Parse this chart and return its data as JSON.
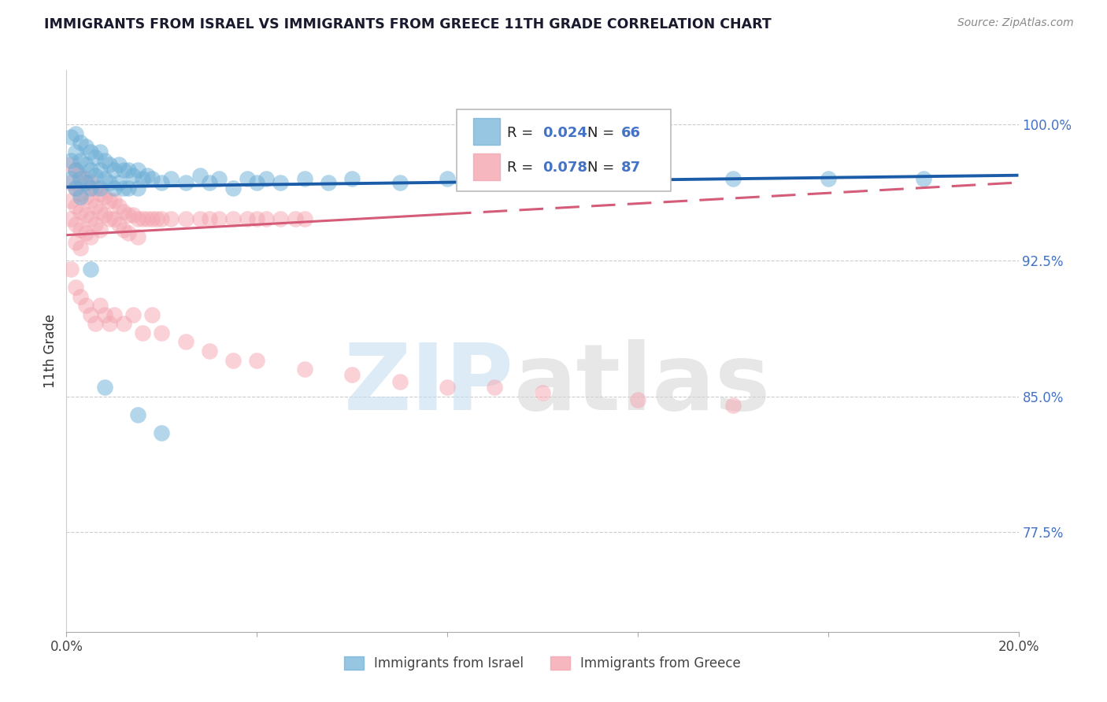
{
  "title": "IMMIGRANTS FROM ISRAEL VS IMMIGRANTS FROM GREECE 11TH GRADE CORRELATION CHART",
  "source": "Source: ZipAtlas.com",
  "ylabel": "11th Grade",
  "ylabel_right_labels": [
    "100.0%",
    "92.5%",
    "85.0%",
    "77.5%"
  ],
  "ylabel_right_values": [
    1.0,
    0.925,
    0.85,
    0.775
  ],
  "xlim": [
    0.0,
    0.2
  ],
  "ylim": [
    0.72,
    1.03
  ],
  "israel_color": "#6baed6",
  "greece_color": "#f4a5b0",
  "israel_R": 0.024,
  "israel_N": 66,
  "greece_R": 0.078,
  "greece_N": 87,
  "legend_label_israel": "Immigrants from Israel",
  "legend_label_greece": "Immigrants from Greece",
  "israel_trend": [
    0.9655,
    0.972
  ],
  "greece_trend": [
    0.939,
    0.968
  ],
  "israel_x": [
    0.001,
    0.001,
    0.001,
    0.002,
    0.002,
    0.002,
    0.002,
    0.003,
    0.003,
    0.003,
    0.003,
    0.004,
    0.004,
    0.004,
    0.005,
    0.005,
    0.005,
    0.006,
    0.006,
    0.007,
    0.007,
    0.007,
    0.008,
    0.008,
    0.009,
    0.009,
    0.01,
    0.01,
    0.011,
    0.011,
    0.012,
    0.012,
    0.013,
    0.013,
    0.014,
    0.015,
    0.015,
    0.016,
    0.017,
    0.018,
    0.02,
    0.022,
    0.025,
    0.028,
    0.03,
    0.032,
    0.035,
    0.038,
    0.04,
    0.042,
    0.045,
    0.05,
    0.055,
    0.06,
    0.07,
    0.08,
    0.09,
    0.1,
    0.12,
    0.14,
    0.16,
    0.18,
    0.005,
    0.008,
    0.015,
    0.02
  ],
  "israel_y": [
    0.993,
    0.98,
    0.97,
    0.995,
    0.985,
    0.975,
    0.965,
    0.99,
    0.98,
    0.97,
    0.96,
    0.988,
    0.978,
    0.968,
    0.985,
    0.975,
    0.965,
    0.982,
    0.972,
    0.985,
    0.975,
    0.965,
    0.98,
    0.97,
    0.978,
    0.968,
    0.975,
    0.965,
    0.978,
    0.968,
    0.975,
    0.965,
    0.975,
    0.965,
    0.972,
    0.975,
    0.965,
    0.97,
    0.972,
    0.97,
    0.968,
    0.97,
    0.968,
    0.972,
    0.968,
    0.97,
    0.965,
    0.97,
    0.968,
    0.97,
    0.968,
    0.97,
    0.968,
    0.97,
    0.968,
    0.97,
    0.968,
    0.97,
    0.97,
    0.97,
    0.97,
    0.97,
    0.92,
    0.855,
    0.84,
    0.83
  ],
  "greece_x": [
    0.001,
    0.001,
    0.001,
    0.001,
    0.002,
    0.002,
    0.002,
    0.002,
    0.002,
    0.003,
    0.003,
    0.003,
    0.003,
    0.003,
    0.004,
    0.004,
    0.004,
    0.004,
    0.005,
    0.005,
    0.005,
    0.005,
    0.006,
    0.006,
    0.006,
    0.007,
    0.007,
    0.007,
    0.008,
    0.008,
    0.009,
    0.009,
    0.01,
    0.01,
    0.011,
    0.011,
    0.012,
    0.012,
    0.013,
    0.013,
    0.014,
    0.015,
    0.015,
    0.016,
    0.017,
    0.018,
    0.019,
    0.02,
    0.022,
    0.025,
    0.028,
    0.03,
    0.032,
    0.035,
    0.038,
    0.04,
    0.042,
    0.045,
    0.048,
    0.05,
    0.001,
    0.002,
    0.003,
    0.004,
    0.005,
    0.006,
    0.007,
    0.008,
    0.009,
    0.01,
    0.012,
    0.014,
    0.016,
    0.018,
    0.02,
    0.025,
    0.03,
    0.035,
    0.04,
    0.05,
    0.06,
    0.07,
    0.08,
    0.09,
    0.1,
    0.12,
    0.14
  ],
  "greece_y": [
    0.978,
    0.968,
    0.958,
    0.948,
    0.975,
    0.965,
    0.955,
    0.945,
    0.935,
    0.972,
    0.962,
    0.952,
    0.942,
    0.932,
    0.97,
    0.96,
    0.95,
    0.94,
    0.968,
    0.958,
    0.948,
    0.938,
    0.965,
    0.955,
    0.945,
    0.962,
    0.952,
    0.942,
    0.96,
    0.95,
    0.958,
    0.948,
    0.958,
    0.948,
    0.955,
    0.945,
    0.952,
    0.942,
    0.95,
    0.94,
    0.95,
    0.948,
    0.938,
    0.948,
    0.948,
    0.948,
    0.948,
    0.948,
    0.948,
    0.948,
    0.948,
    0.948,
    0.948,
    0.948,
    0.948,
    0.948,
    0.948,
    0.948,
    0.948,
    0.948,
    0.92,
    0.91,
    0.905,
    0.9,
    0.895,
    0.89,
    0.9,
    0.895,
    0.89,
    0.895,
    0.89,
    0.895,
    0.885,
    0.895,
    0.885,
    0.88,
    0.875,
    0.87,
    0.87,
    0.865,
    0.862,
    0.858,
    0.855,
    0.855,
    0.852,
    0.848,
    0.845
  ]
}
